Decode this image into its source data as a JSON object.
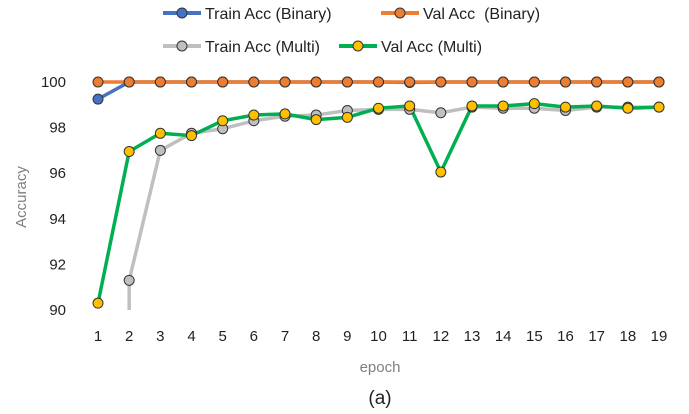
{
  "chart_data": {
    "type": "line",
    "x": [
      1,
      2,
      3,
      4,
      5,
      6,
      7,
      8,
      9,
      10,
      11,
      12,
      13,
      14,
      15,
      16,
      17,
      18,
      19
    ],
    "xlabel": "epoch",
    "ylabel": "Accuracy",
    "ylim": [
      90,
      100
    ],
    "yticks": [
      90,
      92,
      94,
      96,
      98,
      100
    ],
    "grid": false,
    "legend_position": "top",
    "caption": "(a)",
    "series": [
      {
        "name": "Train Acc (Binary)",
        "color": "#4472c4",
        "marker_fill": "#4472c4",
        "values": [
          99.25,
          100,
          100,
          100,
          100,
          100,
          100,
          100,
          100,
          100,
          99.98,
          100,
          100,
          100,
          100,
          100,
          100,
          100,
          100
        ]
      },
      {
        "name": "Val Acc  (Binary)",
        "color": "#ed7d31",
        "marker_fill": "#ed7d31",
        "values": [
          100,
          100,
          100,
          100,
          100,
          100,
          100,
          100,
          100,
          100,
          100,
          100,
          100,
          100,
          100,
          100,
          100,
          100,
          100
        ]
      },
      {
        "name": "Train Acc (Multi)",
        "color": "#bfbfbf",
        "marker_fill": "#bfbfbf",
        "values": [
          null,
          91.3,
          97.0,
          97.75,
          97.95,
          98.3,
          98.5,
          98.55,
          98.75,
          98.8,
          98.8,
          98.65,
          98.9,
          98.85,
          98.85,
          98.75,
          98.9,
          98.9,
          98.9
        ]
      },
      {
        "name": "Val Acc (Multi)",
        "color": "#00b050",
        "marker_fill": "#ffc000",
        "values": [
          90.3,
          96.95,
          97.75,
          97.65,
          98.3,
          98.55,
          98.6,
          98.35,
          98.45,
          98.85,
          98.95,
          96.05,
          98.95,
          98.95,
          99.05,
          98.9,
          98.95,
          98.85,
          98.9
        ]
      }
    ]
  }
}
